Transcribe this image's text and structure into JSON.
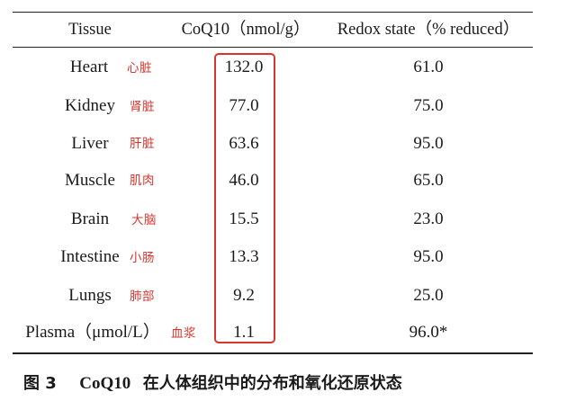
{
  "table": {
    "headers": {
      "tissue": "Tissue",
      "coq10": "CoQ10（nmol/g）",
      "redox": "Redox state（% reduced）"
    },
    "rows": [
      {
        "tissue": "Heart",
        "zh": "心脏",
        "coq10": "132.0",
        "redox": "61.0"
      },
      {
        "tissue": "Kidney",
        "zh": "肾脏",
        "coq10": "77.0",
        "redox": "75.0"
      },
      {
        "tissue": "Liver",
        "zh": "肝脏",
        "coq10": "63.6",
        "redox": "95.0"
      },
      {
        "tissue": "Muscle",
        "zh": "肌肉",
        "coq10": "46.0",
        "redox": "65.0"
      },
      {
        "tissue": "Brain",
        "zh": "大脑",
        "coq10": "15.5",
        "redox": "23.0"
      },
      {
        "tissue": "Intestine",
        "zh": "小肠",
        "coq10": "13.3",
        "redox": "95.0"
      },
      {
        "tissue": "Lungs",
        "zh": "肺部",
        "coq10": "9.2",
        "redox": "25.0"
      },
      {
        "tissue": "Plasma（μmol/L）",
        "zh": "血浆",
        "coq10": "1.1",
        "redox": "96.0*"
      }
    ]
  },
  "caption": {
    "label": "图 3",
    "subject": "CoQ10",
    "text": "在人体组织中的分布和氧化还原状态"
  },
  "colors": {
    "annotation": "#d9352c",
    "text": "#1a1a1a",
    "rule": "#222222"
  }
}
